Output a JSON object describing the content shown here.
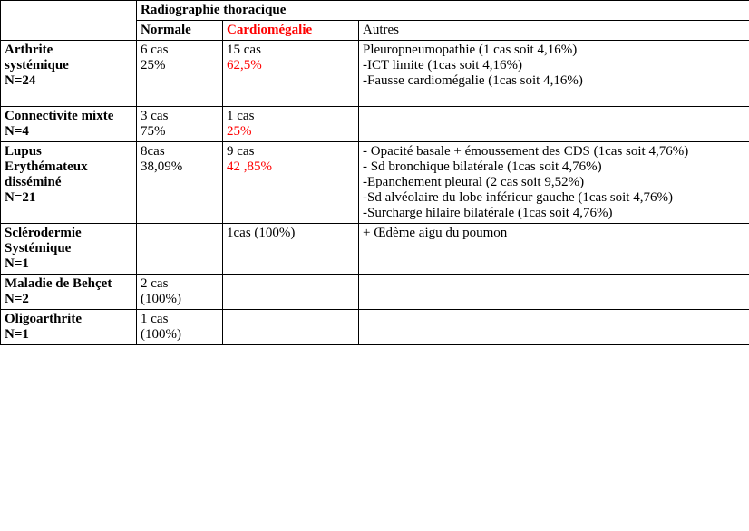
{
  "header": {
    "title": "Radiographie thoracique",
    "col_normale": "Normale",
    "col_cardio": "Cardiomégalie",
    "col_autres": "Autres"
  },
  "rows": {
    "arthrite": {
      "label_l1": "Arthrite",
      "label_l2": "systémique",
      "label_l3": "N=24",
      "normale_l1": "6 cas",
      "normale_l2": " 25%",
      "cardio_l1": "15 cas",
      "cardio_l2": "62,5%",
      "autres_l1": "Pleuropneumopathie (1 cas soit 4,16%)",
      "autres_l2": "-ICT limite (1cas soit 4,16%)",
      "autres_l3": "-Fausse cardiomégalie (1cas soit 4,16%)"
    },
    "connectivite": {
      "label_l1": "Connectivite mixte",
      "label_l2": "N=4",
      "normale_l1": "3 cas",
      "normale_l2": "75%",
      "cardio_l1": "1 cas",
      "cardio_l2": "25%"
    },
    "lupus": {
      "label_l1": "Lupus",
      "label_l2": "Erythémateux",
      "label_l3": "disséminé",
      "label_l4": "N=21",
      "normale_l1": "8cas",
      "normale_l2": "38,09%",
      "cardio_l1": "9 cas",
      "cardio_l2": "42 ,85%",
      "autres_l1": "- Opacité basale + émoussement des CDS (1cas soit 4,76%)",
      "autres_l2": "- Sd bronchique bilatérale (1cas soit 4,76%)",
      "autres_l3": "-Epanchement pleural (2 cas soit 9,52%)",
      "autres_l4": "-Sd alvéolaire du lobe inférieur gauche (1cas soit 4,76%)",
      "autres_l5": "-Surcharge hilaire bilatérale (1cas soit 4,76%)"
    },
    "sclerodermie": {
      "label_l1": "Sclérodermie",
      "label_l2": "Systémique",
      "label_l3": "N=1",
      "cardio_l1": " 1cas (100%)",
      "autres_l1": "+ Œdème aigu du poumon"
    },
    "behcet": {
      "label_l1": "Maladie de Behçet",
      "label_l2": "N=2",
      "normale_l1": "  2 cas",
      "normale_l2": "(100%)"
    },
    "oligo": {
      "label_l1": "Oligoarthrite",
      "label_l2": "N=1",
      "normale_l1": " 1 cas",
      "normale_l2": "(100%)"
    }
  },
  "style": {
    "font_family": "Times New Roman",
    "text_color": "#000000",
    "accent_color": "#ff0000",
    "border_color": "#000000",
    "background_color": "#ffffff"
  }
}
